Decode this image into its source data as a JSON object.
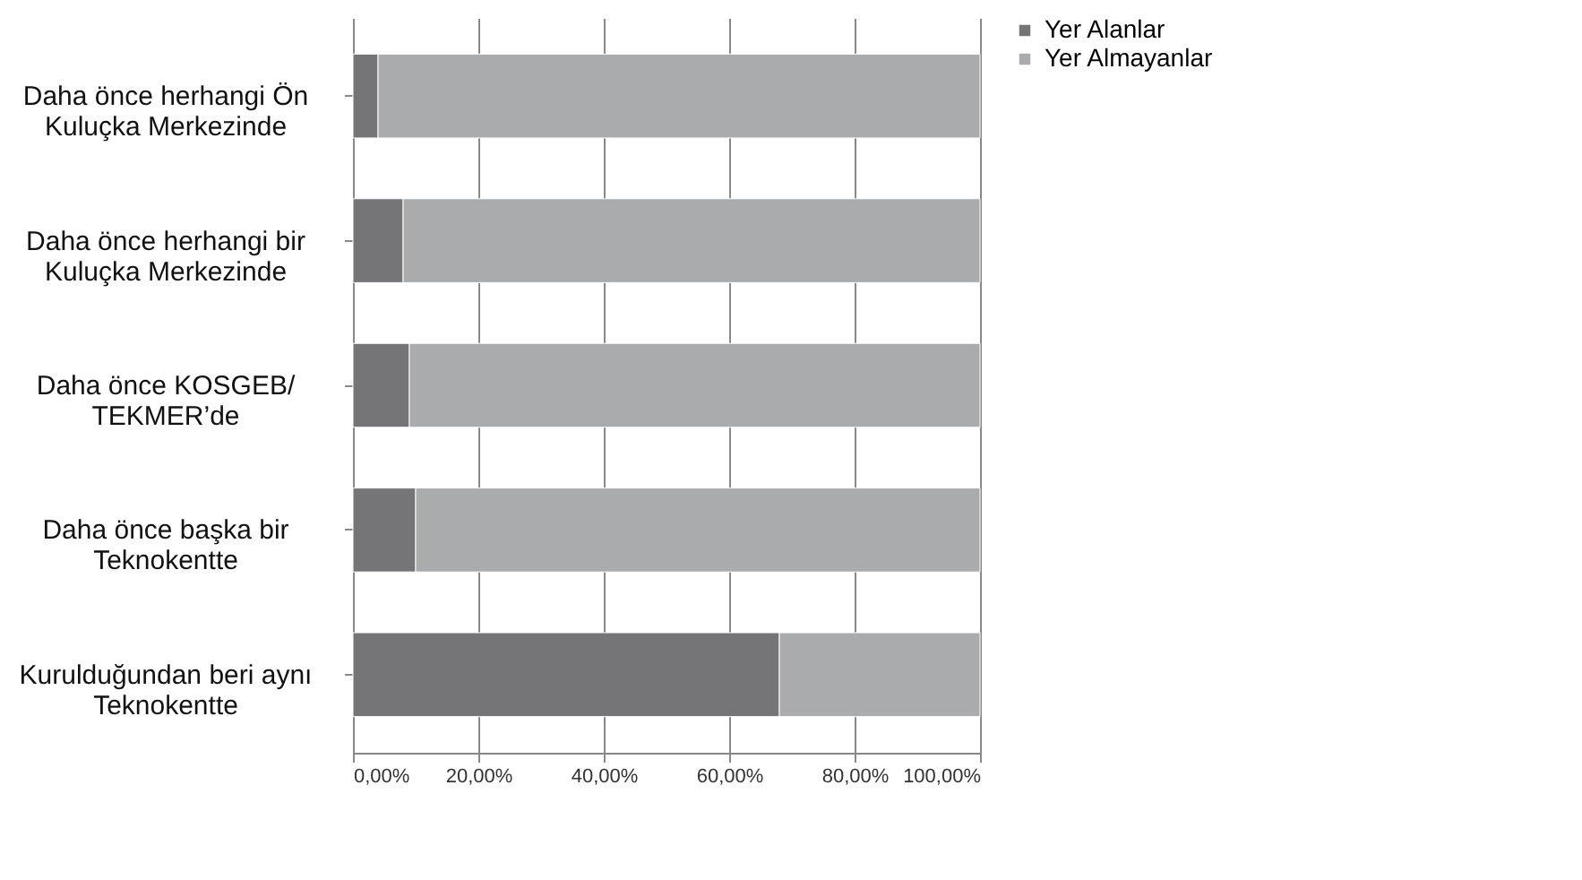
{
  "chart_data": {
    "type": "bar",
    "orientation": "horizontal",
    "stacked": true,
    "categories": [
      "Daha önce herhangi Ön\nKuluçka Merkezinde",
      "Daha önce herhangi bir\nKuluçka Merkezinde",
      "Daha önce KOSGEB/\nTEKMER’de",
      "Daha önce başka bir\nTeknokentte",
      "Kurulduğundan beri aynı\nTeknokentte"
    ],
    "series": [
      {
        "name": "Yer Alanlar",
        "color": "#757578",
        "values": [
          4,
          8,
          9,
          10,
          68
        ]
      },
      {
        "name": "Yer Almayanlar",
        "color": "#aaabad",
        "values": [
          96,
          92,
          91,
          90,
          32
        ]
      }
    ],
    "xlim": [
      0,
      100
    ],
    "xticks": [
      {
        "value": 0,
        "label": "0,00%"
      },
      {
        "value": 20,
        "label": "20,00%"
      },
      {
        "value": 40,
        "label": "40,00%"
      },
      {
        "value": 60,
        "label": "60,00%"
      },
      {
        "value": 80,
        "label": "80,00%"
      },
      {
        "value": 100,
        "label": "100,00%"
      }
    ],
    "grid": "x",
    "legend": "right"
  }
}
